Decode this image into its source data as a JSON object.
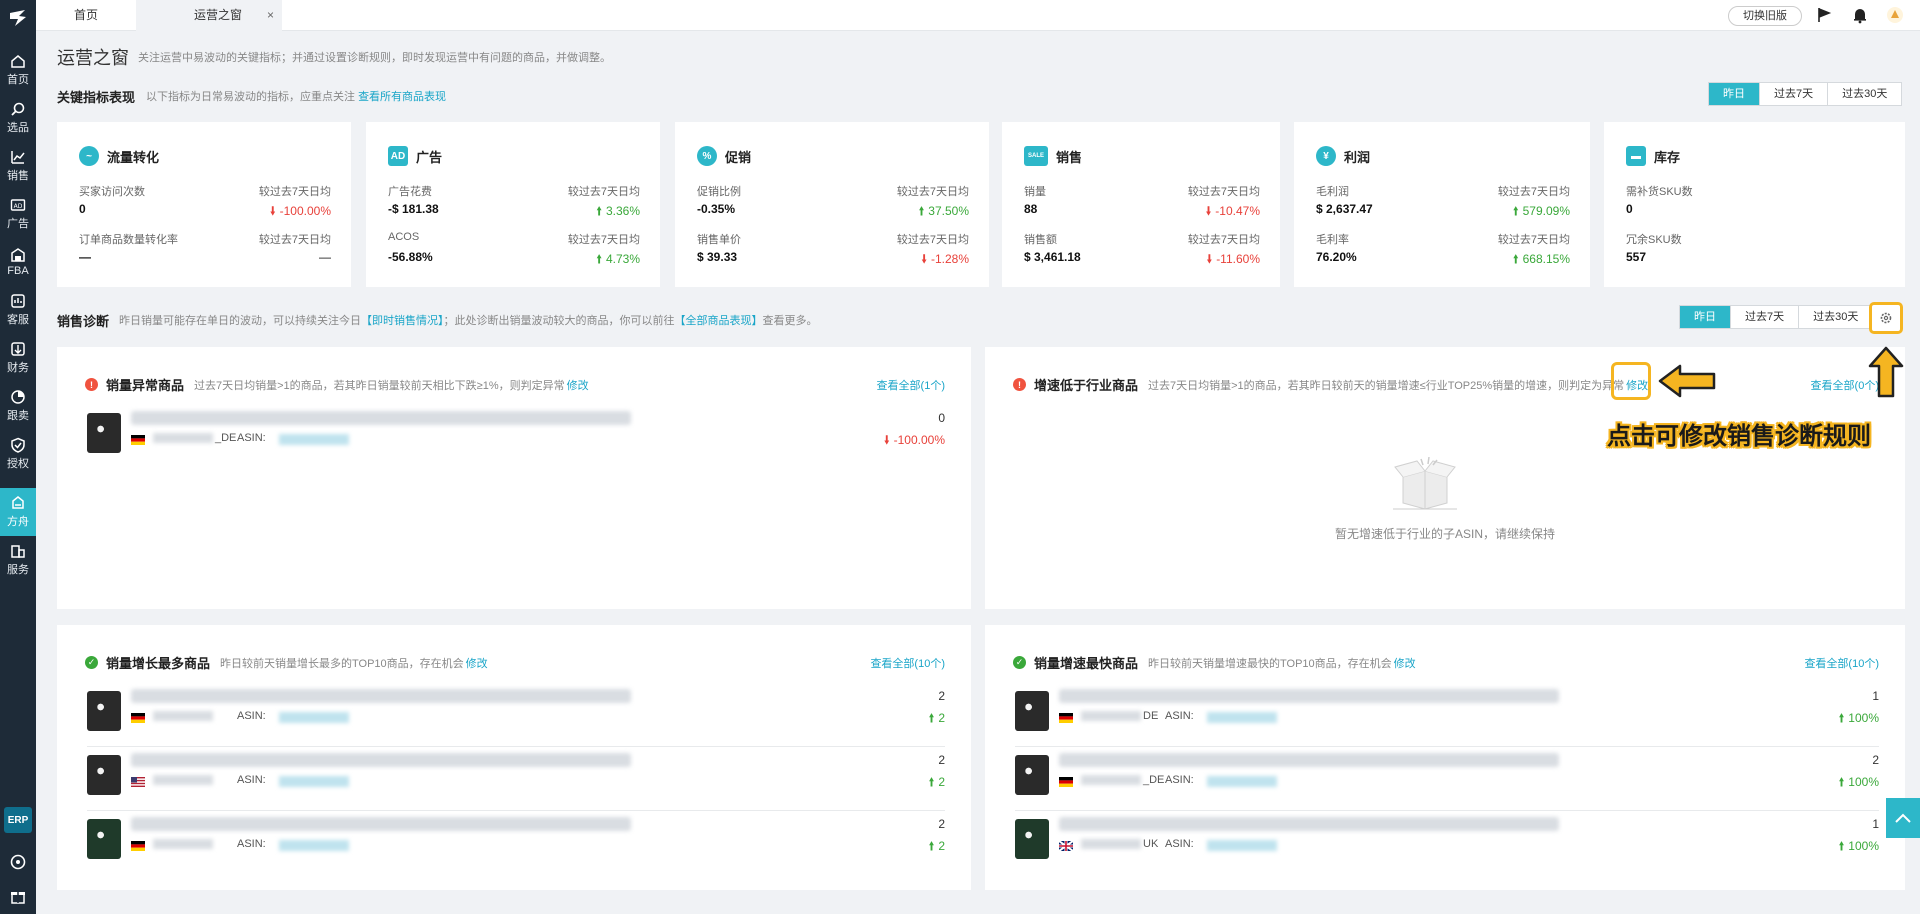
{
  "sidebar": {
    "items": [
      {
        "label": "首页",
        "icon": "home-icon"
      },
      {
        "label": "选品",
        "icon": "search-icon"
      },
      {
        "label": "销售",
        "icon": "chart-line-icon"
      },
      {
        "label": "广告",
        "icon": "ad-icon"
      },
      {
        "label": "FBA",
        "icon": "warehouse-icon"
      },
      {
        "label": "客服",
        "icon": "customer-service-icon"
      },
      {
        "label": "财务",
        "icon": "finance-icon"
      },
      {
        "label": "跟卖",
        "icon": "pie-icon"
      },
      {
        "label": "授权",
        "icon": "shield-icon"
      },
      {
        "label": "方舟",
        "icon": "ark-icon"
      },
      {
        "label": "服务",
        "icon": "building-icon"
      }
    ],
    "erp_label": "ERP"
  },
  "topbar": {
    "tabs": [
      {
        "label": "首页"
      },
      {
        "label": "运营之窗"
      }
    ],
    "close_glyph": "×",
    "legacy_button": "切换旧版"
  },
  "page": {
    "title": "运营之窗",
    "description": "关注运营中易波动的关键指标；并通过设置诊断规则，即时发现运营中有问题的商品，并做调整。"
  },
  "kpi_section": {
    "title": "关键指标表现",
    "desc": "以下指标为日常易波动的指标，应重点关注",
    "link": "查看所有商品表现",
    "ranges": [
      "昨日",
      "过去7天",
      "过去30天"
    ]
  },
  "kpi_cards": [
    {
      "title": "流量转化",
      "icon_text": "~",
      "metrics": [
        {
          "label": "买家访问次数",
          "cmp": "较过去7天日均",
          "value": "0",
          "change": "-100.00%",
          "dir": "down"
        },
        {
          "label": "订单商品数量转化率",
          "cmp": "较过去7天日均",
          "value": "—",
          "change": "—",
          "dir": "none"
        }
      ]
    },
    {
      "title": "广告",
      "icon_text": "AD",
      "metrics": [
        {
          "label": "广告花费",
          "cmp": "较过去7天日均",
          "value": "-$ 181.38",
          "change": "3.36%",
          "dir": "up"
        },
        {
          "label": "ACOS",
          "cmp": "较过去7天日均",
          "value": "-56.88%",
          "change": "4.73%",
          "dir": "up"
        }
      ]
    },
    {
      "title": "促销",
      "icon_text": "%",
      "metrics": [
        {
          "label": "促销比例",
          "cmp": "较过去7天日均",
          "value": "-0.35%",
          "change": "37.50%",
          "dir": "up"
        },
        {
          "label": "销售单价",
          "cmp": "较过去7天日均",
          "value": "$ 39.33",
          "change": "-1.28%",
          "dir": "down"
        }
      ]
    },
    {
      "title": "销售",
      "icon_text": "SALE",
      "metrics": [
        {
          "label": "销量",
          "cmp": "较过去7天日均",
          "value": "88",
          "change": "-10.47%",
          "dir": "down"
        },
        {
          "label": "销售额",
          "cmp": "较过去7天日均",
          "value": "$ 3,461.18",
          "change": "-11.60%",
          "dir": "down"
        }
      ]
    },
    {
      "title": "利润",
      "icon_text": "¥",
      "metrics": [
        {
          "label": "毛利润",
          "cmp": "较过去7天日均",
          "value": "$ 2,637.47",
          "change": "579.09%",
          "dir": "up"
        },
        {
          "label": "毛利率",
          "cmp": "较过去7天日均",
          "value": "76.20%",
          "change": "668.15%",
          "dir": "up"
        }
      ]
    },
    {
      "title": "库存",
      "icon_text": "▬",
      "metrics": [
        {
          "label": "需补货SKU数",
          "cmp": "",
          "value": "0",
          "change": "",
          "dir": "none"
        },
        {
          "label": "冗余SKU数",
          "cmp": "",
          "value": "557",
          "change": "",
          "dir": "none"
        }
      ]
    }
  ],
  "diag_section": {
    "title": "销售诊断",
    "desc_prefix": "昨日销量可能存在单日的波动，可以持续关注今日",
    "link1": "【即时销售情况】",
    "desc_mid": "；此处诊断出销量波动较大的商品，你可以前往",
    "link2": "【全部商品表现】",
    "desc_suffix": "查看更多。",
    "ranges": [
      "昨日",
      "过去7天",
      "过去30天"
    ]
  },
  "panels": {
    "abnormal": {
      "title": "销量异常商品",
      "desc": "过去7天日均销量>1的商品，若其昨日销量较前天相比下跌≥1%，则判定异常",
      "edit": "修改",
      "view_all": "查看全部(1个)",
      "rows": [
        {
          "store_suffix": "_DE",
          "asin_label": "ASIN:",
          "top": "0",
          "bottom": "-100.00%",
          "dir": "down",
          "flag": "de"
        }
      ]
    },
    "slow": {
      "title": "增速低于行业商品",
      "desc": "过去7天日均销量>1的商品，若其昨日较前天的销量增速≤行业TOP25%销量的增速，则判定为异常",
      "edit": "修改",
      "view_all": "查看全部(0个)",
      "empty_text": "暂无增速低于行业的子ASIN，请继续保持"
    },
    "growth_most": {
      "title": "销量增长最多商品",
      "desc": "昨日较前天销量增长最多的TOP10商品，存在机会",
      "edit": "修改",
      "view_all": "查看全部(10个)",
      "rows": [
        {
          "store_suffix": "",
          "asin_label": "ASIN:",
          "top": "2",
          "bottom": "2",
          "dir": "up",
          "flag": "de"
        },
        {
          "store_suffix": "",
          "asin_label": "ASIN:",
          "top": "2",
          "bottom": "2",
          "dir": "up",
          "flag": "us"
        },
        {
          "store_suffix": "",
          "asin_label": "ASIN:",
          "top": "2",
          "bottom": "2",
          "dir": "up",
          "flag": "de"
        }
      ]
    },
    "growth_fast": {
      "title": "销量增速最快商品",
      "desc": "昨日较前天销量增速最快的TOP10商品，存在机会",
      "edit": "修改",
      "view_all": "查看全部(10个)",
      "rows": [
        {
          "store_suffix": "DE",
          "asin_label": "ASIN:",
          "top": "1",
          "bottom": "100%",
          "dir": "up",
          "flag": "de"
        },
        {
          "store_suffix": "_DE",
          "asin_label": "ASIN:",
          "top": "2",
          "bottom": "100%",
          "dir": "up",
          "flag": "de"
        },
        {
          "store_suffix": "UK",
          "asin_label": "ASIN:",
          "top": "1",
          "bottom": "100%",
          "dir": "up",
          "flag": "uk"
        }
      ]
    }
  },
  "annotation": {
    "text": "点击可修改销售诊断规则"
  },
  "colors": {
    "accent": "#2db7c9",
    "sidebar": "#1e2b38",
    "up": "#3aa83a",
    "down": "#e8413a",
    "highlight": "#f5b521"
  }
}
